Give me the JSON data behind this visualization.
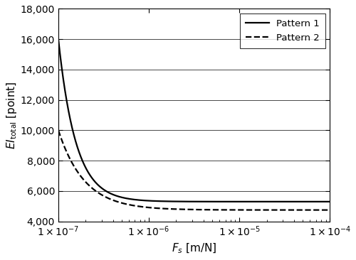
{
  "xmin": 1e-07,
  "xmax": 0.0001,
  "ymin": 4000,
  "ymax": 18000,
  "yticks": [
    4000,
    6000,
    8000,
    10000,
    12000,
    14000,
    16000,
    18000
  ],
  "xlabel": "$F_s$ [m/N]",
  "ylabel": "$EI_{\\mathrm{total}}$ [point]",
  "pattern1_label": "Pattern 1",
  "pattern2_label": "Pattern 2",
  "pattern1_color": "#000000",
  "pattern2_color": "#000000",
  "pattern1_linestyle": "solid",
  "pattern2_linestyle": "dashed",
  "pattern1_asym": 5300,
  "pattern2_asym": 4750,
  "legend_loc": "upper right",
  "linewidth": 1.6,
  "background_color": "#ffffff"
}
